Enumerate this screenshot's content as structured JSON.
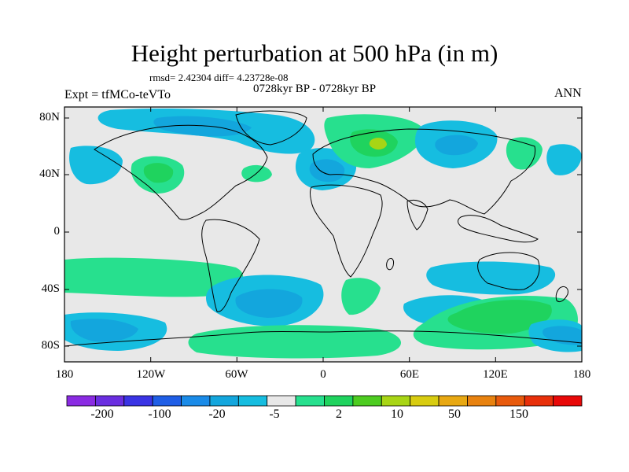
{
  "header": {
    "title": "Height perturbation at 500 hPa (in m)",
    "stats": "rmsd= 2.42304 diff= 4.23728e-08",
    "period": "0728kyr BP - 0728kyr BP",
    "experiment": "Expt = tfMCo-teVTo",
    "season": "ANN"
  },
  "axes": {
    "y_labels": [
      "80N",
      "40N",
      "0",
      "40S",
      "80S"
    ],
    "x_labels": [
      "180",
      "120W",
      "60W",
      "0",
      "60E",
      "120E",
      "180"
    ]
  },
  "colorbar": {
    "labels": [
      "-200",
      "-100",
      "-20",
      "-5",
      "2",
      "10",
      "50",
      "150"
    ],
    "colors": [
      "#8a2be2",
      "#6a2ee0",
      "#3a34e4",
      "#1f5ee6",
      "#1a8be8",
      "#13a6dd",
      "#16bde0",
      "#e8e8e8",
      "#27e08e",
      "#1fd35e",
      "#4dcc20",
      "#a8d515",
      "#d8cc10",
      "#e8a812",
      "#e8820f",
      "#e85a0c",
      "#e8300a",
      "#e80808"
    ]
  },
  "map": {
    "background_color": "#e8e8e8",
    "green_light": "#27e08e",
    "green_mid": "#1fd35e",
    "green_dark": "#4dcc20",
    "yellow_green": "#a8d515",
    "cyan": "#16bde0",
    "blue_light": "#13a6dd",
    "blue_mid": "#1a8be8"
  }
}
